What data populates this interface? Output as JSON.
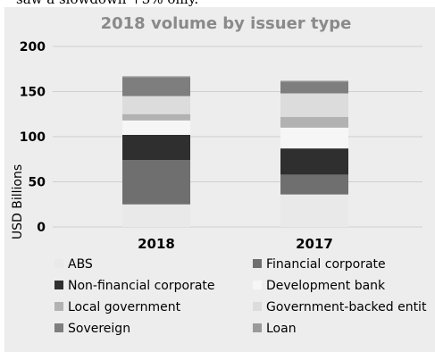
{
  "page_top_text": "saw a slowdown +3% only.",
  "chart_data": {
    "type": "bar",
    "stacked": true,
    "title": "2018 volume by issuer type",
    "xlabel": "",
    "ylabel": "USD Billions",
    "ylim": [
      0,
      200
    ],
    "yticks": [
      0,
      50,
      100,
      150,
      200
    ],
    "grid": true,
    "legend_position": "bottom",
    "categories": [
      "2018",
      "2017"
    ],
    "series": [
      {
        "name": "ABS",
        "values": [
          25,
          36
        ],
        "color": "#e9e9e9"
      },
      {
        "name": "Financial corporate",
        "values": [
          49,
          22
        ],
        "color": "#6f6f6f"
      },
      {
        "name": "Non-financial corporate",
        "values": [
          28,
          29
        ],
        "color": "#2f2f2f"
      },
      {
        "name": "Development bank",
        "values": [
          16,
          23
        ],
        "color": "#f6f6f6"
      },
      {
        "name": "Local government",
        "values": [
          7,
          12
        ],
        "color": "#b2b2b2"
      },
      {
        "name": "Government-backed entit",
        "values": [
          20,
          26
        ],
        "color": "#dcdcdc"
      },
      {
        "name": "Sovereign",
        "values": [
          21,
          13
        ],
        "color": "#7e7e7e"
      },
      {
        "name": "Loan",
        "values": [
          1,
          1
        ],
        "color": "#9a9a9a"
      }
    ]
  }
}
